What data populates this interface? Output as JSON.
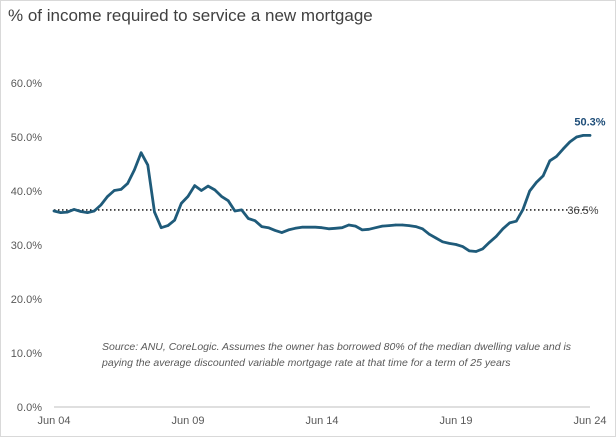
{
  "chart_data": {
    "type": "line",
    "title": "% of  income required to service a new mortgage",
    "xlabel": "",
    "ylabel": "",
    "ylim": [
      0,
      60
    ],
    "yticks": [
      "0.0%",
      "10.0%",
      "20.0%",
      "30.0%",
      "40.0%",
      "50.0%",
      "60.0%"
    ],
    "ytick_values": [
      0,
      10,
      20,
      30,
      40,
      50,
      60
    ],
    "xticks": [
      "Jun 04",
      "Jun 09",
      "Jun 14",
      "Jun 19",
      "Jun 24"
    ],
    "xtick_values": [
      2004.5,
      2009.5,
      2014.5,
      2019.5,
      2024.5
    ],
    "grid": false,
    "series": [
      {
        "name": "% of income required to service a new mortgage",
        "color": "#1f5b7a",
        "x": [
          2004.5,
          2004.75,
          2005.0,
          2005.25,
          2005.5,
          2005.75,
          2006.0,
          2006.25,
          2006.5,
          2006.75,
          2007.0,
          2007.25,
          2007.5,
          2007.75,
          2008.0,
          2008.25,
          2008.5,
          2008.75,
          2009.0,
          2009.25,
          2009.5,
          2009.75,
          2010.0,
          2010.25,
          2010.5,
          2010.75,
          2011.0,
          2011.25,
          2011.5,
          2011.75,
          2012.0,
          2012.25,
          2012.5,
          2012.75,
          2013.0,
          2013.25,
          2013.5,
          2013.75,
          2014.0,
          2014.25,
          2014.5,
          2014.75,
          2015.0,
          2015.25,
          2015.5,
          2015.75,
          2016.0,
          2016.25,
          2016.5,
          2016.75,
          2017.0,
          2017.25,
          2017.5,
          2017.75,
          2018.0,
          2018.25,
          2018.5,
          2018.75,
          2019.0,
          2019.25,
          2019.5,
          2019.75,
          2020.0,
          2020.25,
          2020.5,
          2020.75,
          2021.0,
          2021.25,
          2021.5,
          2021.75,
          2022.0,
          2022.25,
          2022.5,
          2022.75,
          2023.0,
          2023.25,
          2023.5,
          2023.75,
          2024.0,
          2024.25,
          2024.5
        ],
        "values": [
          36.3,
          36.0,
          36.1,
          36.6,
          36.2,
          36.0,
          36.3,
          37.4,
          39.0,
          40.1,
          40.3,
          41.4,
          43.9,
          47.1,
          44.8,
          36.1,
          33.2,
          33.6,
          34.6,
          37.7,
          39.0,
          41.0,
          40.1,
          40.9,
          40.2,
          39.0,
          38.2,
          36.3,
          36.5,
          34.9,
          34.5,
          33.4,
          33.2,
          32.7,
          32.3,
          32.8,
          33.1,
          33.3,
          33.3,
          33.3,
          33.2,
          33.0,
          33.1,
          33.2,
          33.7,
          33.5,
          32.8,
          32.9,
          33.2,
          33.5,
          33.6,
          33.7,
          33.7,
          33.6,
          33.4,
          33.0,
          32.0,
          31.3,
          30.6,
          30.3,
          30.1,
          29.7,
          28.9,
          28.8,
          29.3,
          30.5,
          31.6,
          33.0,
          34.1,
          34.4,
          36.6,
          40.0,
          41.6,
          42.8,
          45.6,
          46.4,
          47.8,
          49.1,
          50.0,
          50.3,
          50.3
        ]
      }
    ],
    "reference_line": {
      "value": 36.5,
      "label": "36.5%",
      "style": "dotted"
    },
    "end_label": "50.3%",
    "annotation": "Source: ANU, CoreLogic. Assumes the owner has borrowed 80% of the median dwelling value  and is paying  the average  discounted variable  mortgage rate at that time for a term of 25 years",
    "annotation_lines": [
      "Source: ANU, CoreLogic. Assumes the owner has borrowed 80% of the median dwelling value  and is",
      "paying  the average  discounted variable  mortgage rate at that time for a term of 25 years"
    ]
  }
}
